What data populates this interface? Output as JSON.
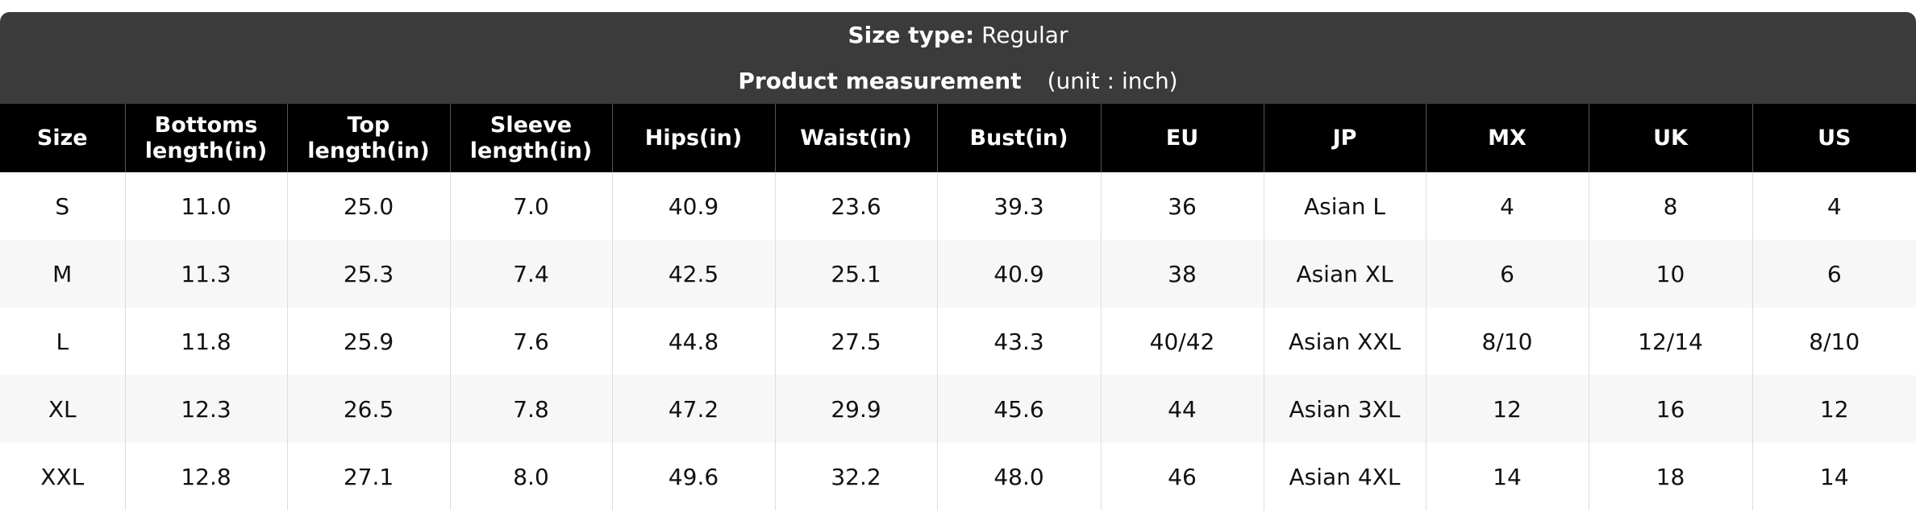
{
  "header": {
    "size_type_label": "Size type:",
    "size_type_value": "Regular",
    "title": "Product measurement",
    "unit": "(unit : inch)"
  },
  "table": {
    "columns": [
      "Size",
      "Bottoms length(in)",
      "Top length(in)",
      "Sleeve length(in)",
      "Hips(in)",
      "Waist(in)",
      "Bust(in)",
      "EU",
      "JP",
      "MX",
      "UK",
      "US"
    ],
    "rows": [
      [
        "S",
        "11.0",
        "25.0",
        "7.0",
        "40.9",
        "23.6",
        "39.3",
        "36",
        "Asian L",
        "4",
        "8",
        "4"
      ],
      [
        "M",
        "11.3",
        "25.3",
        "7.4",
        "42.5",
        "25.1",
        "40.9",
        "38",
        "Asian XL",
        "6",
        "10",
        "6"
      ],
      [
        "L",
        "11.8",
        "25.9",
        "7.6",
        "44.8",
        "27.5",
        "43.3",
        "40/42",
        "Asian XXL",
        "8/10",
        "12/14",
        "8/10"
      ],
      [
        "XL",
        "12.3",
        "26.5",
        "7.8",
        "47.2",
        "29.9",
        "45.6",
        "44",
        "Asian 3XL",
        "12",
        "16",
        "12"
      ],
      [
        "XXL",
        "12.8",
        "27.1",
        "8.0",
        "49.6",
        "32.2",
        "48.0",
        "46",
        "Asian 4XL",
        "14",
        "18",
        "14"
      ]
    ]
  }
}
